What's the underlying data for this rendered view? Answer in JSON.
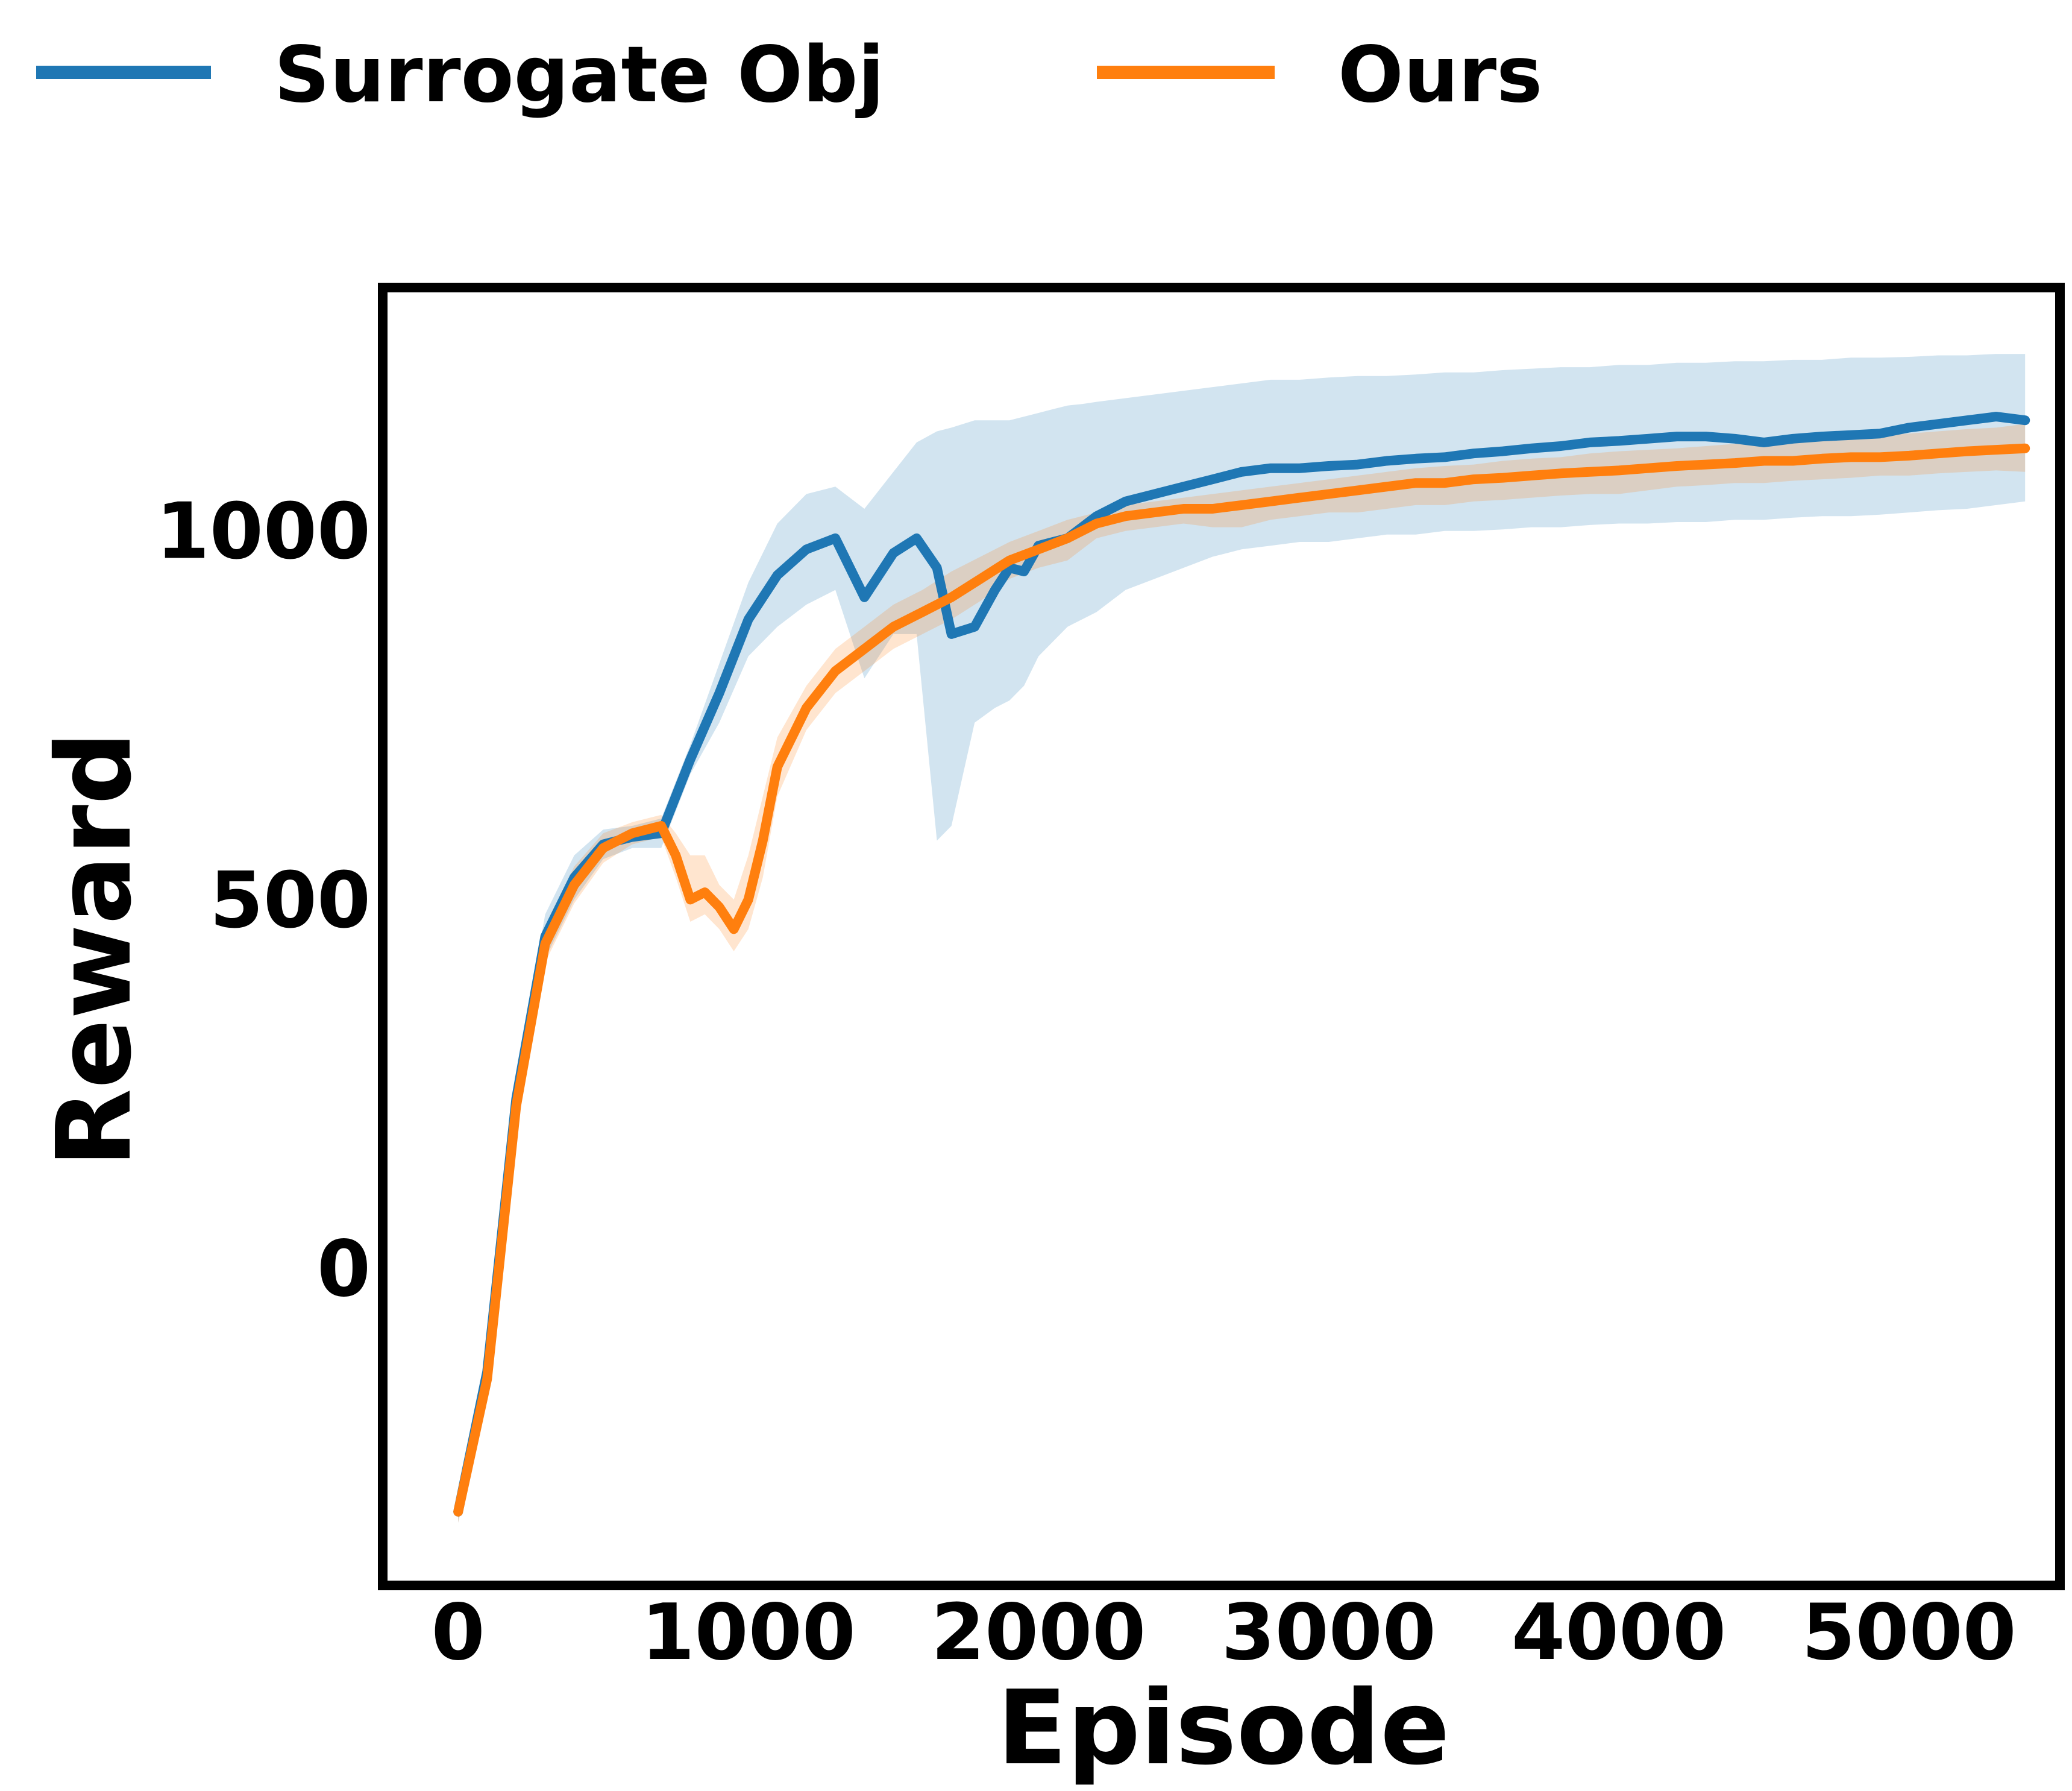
{
  "chart_data": {
    "type": "line",
    "title": "",
    "xlabel": "Episode",
    "ylabel": "Reward",
    "xlim": [
      -260,
      5520
    ],
    "ylim": [
      -430,
      1330
    ],
    "xticks": [
      0,
      1000,
      2000,
      3000,
      4000,
      5000
    ],
    "yticks": [
      0,
      500,
      1000
    ],
    "grid": false,
    "legend_position": "top, above plot, horizontal",
    "series": [
      {
        "name": "Surrogate Obj",
        "color": "#1f77b4",
        "band_color": "#1f77b4",
        "x": [
          0,
          100,
          200,
          300,
          400,
          500,
          600,
          700,
          800,
          900,
          1000,
          1100,
          1200,
          1300,
          1400,
          1500,
          1580,
          1650,
          1700,
          1780,
          1850,
          1900,
          1950,
          2000,
          2050,
          2100,
          2150,
          2200,
          2300,
          2400,
          2500,
          2600,
          2700,
          2800,
          2900,
          3000,
          3100,
          3200,
          3300,
          3400,
          3500,
          3600,
          3700,
          3800,
          3900,
          4000,
          4100,
          4200,
          4300,
          4400,
          4500,
          4600,
          4700,
          4800,
          4900,
          5000,
          5100,
          5200,
          5300,
          5400
        ],
        "y": [
          -330,
          -140,
          230,
          450,
          530,
          575,
          585,
          590,
          690,
          780,
          880,
          940,
          975,
          990,
          910,
          970,
          990,
          950,
          860,
          870,
          920,
          950,
          945,
          980,
          985,
          990,
          1005,
          1020,
          1040,
          1050,
          1060,
          1070,
          1080,
          1085,
          1085,
          1088,
          1090,
          1095,
          1098,
          1100,
          1105,
          1108,
          1112,
          1115,
          1120,
          1122,
          1125,
          1128,
          1128,
          1125,
          1120,
          1125,
          1128,
          1130,
          1132,
          1140,
          1145,
          1150,
          1155,
          1150
        ],
        "upper": [
          -320,
          -120,
          260,
          480,
          560,
          595,
          600,
          610,
          710,
          820,
          930,
          1010,
          1050,
          1060,
          1030,
          1080,
          1120,
          1135,
          1140,
          1150,
          1150,
          1150,
          1155,
          1160,
          1165,
          1170,
          1172,
          1175,
          1180,
          1185,
          1190,
          1195,
          1200,
          1205,
          1205,
          1208,
          1210,
          1210,
          1212,
          1215,
          1215,
          1218,
          1220,
          1222,
          1222,
          1225,
          1225,
          1228,
          1228,
          1230,
          1230,
          1232,
          1232,
          1235,
          1235,
          1236,
          1238,
          1238,
          1240,
          1240
        ],
        "lower": [
          -345,
          -160,
          200,
          420,
          500,
          555,
          570,
          570,
          670,
          740,
          830,
          870,
          900,
          920,
          800,
          860,
          860,
          580,
          600,
          740,
          760,
          770,
          790,
          830,
          850,
          870,
          880,
          890,
          920,
          935,
          950,
          965,
          975,
          980,
          985,
          985,
          990,
          995,
          995,
          1000,
          1000,
          1002,
          1005,
          1005,
          1008,
          1010,
          1010,
          1012,
          1012,
          1015,
          1015,
          1018,
          1020,
          1020,
          1022,
          1025,
          1028,
          1030,
          1035,
          1040
        ]
      },
      {
        "name": "Ours",
        "color": "#ff7f0e",
        "band_color": "#ff7f0e",
        "x": [
          0,
          100,
          200,
          300,
          400,
          500,
          600,
          700,
          750,
          800,
          850,
          900,
          950,
          1000,
          1050,
          1100,
          1200,
          1300,
          1400,
          1500,
          1600,
          1700,
          1800,
          1900,
          2000,
          2100,
          2200,
          2300,
          2400,
          2500,
          2600,
          2700,
          2800,
          2900,
          3000,
          3100,
          3200,
          3300,
          3400,
          3500,
          3600,
          3700,
          3800,
          3900,
          4000,
          4100,
          4200,
          4300,
          4400,
          4500,
          4600,
          4700,
          4800,
          4900,
          5000,
          5100,
          5200,
          5300,
          5400
        ],
        "y": [
          -330,
          -150,
          220,
          440,
          520,
          570,
          590,
          600,
          560,
          500,
          510,
          490,
          460,
          500,
          580,
          680,
          760,
          810,
          840,
          870,
          890,
          910,
          935,
          960,
          975,
          990,
          1010,
          1020,
          1025,
          1030,
          1030,
          1035,
          1040,
          1045,
          1050,
          1055,
          1060,
          1065,
          1065,
          1070,
          1072,
          1075,
          1078,
          1080,
          1082,
          1085,
          1088,
          1090,
          1092,
          1095,
          1095,
          1098,
          1100,
          1100,
          1102,
          1105,
          1108,
          1110,
          1112
        ],
        "upper": [
          -320,
          -130,
          245,
          465,
          545,
          590,
          605,
          615,
          590,
          560,
          560,
          520,
          500,
          560,
          640,
          720,
          790,
          840,
          870,
          900,
          920,
          945,
          965,
          985,
          1000,
          1015,
          1025,
          1035,
          1040,
          1045,
          1050,
          1055,
          1060,
          1065,
          1070,
          1075,
          1080,
          1085,
          1088,
          1090,
          1095,
          1098,
          1100,
          1105,
          1108,
          1110,
          1112,
          1115,
          1118,
          1120,
          1122,
          1125,
          1128,
          1130,
          1132,
          1135,
          1138,
          1140,
          1145
        ],
        "lower": [
          -345,
          -170,
          195,
          415,
          495,
          550,
          575,
          585,
          530,
          470,
          480,
          460,
          430,
          460,
          530,
          640,
          730,
          780,
          810,
          840,
          860,
          880,
          905,
          935,
          950,
          960,
          990,
          1000,
          1005,
          1010,
          1005,
          1005,
          1015,
          1020,
          1025,
          1025,
          1030,
          1035,
          1035,
          1040,
          1042,
          1045,
          1048,
          1050,
          1050,
          1055,
          1060,
          1062,
          1065,
          1065,
          1068,
          1070,
          1072,
          1075,
          1075,
          1078,
          1080,
          1082,
          1080
        ]
      }
    ]
  }
}
